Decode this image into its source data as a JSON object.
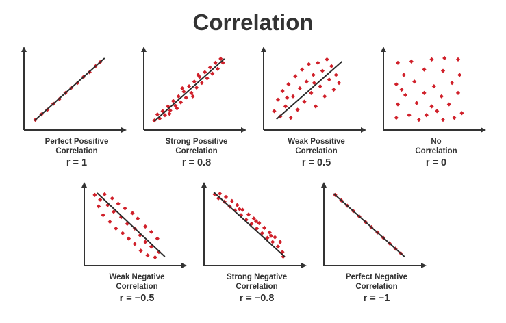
{
  "title": "Correlation",
  "colors": {
    "axis": "#333333",
    "point": "#d0202a",
    "line": "#2b2b2b",
    "text": "#333333"
  },
  "chart_data": [
    {
      "type": "scatter",
      "label_line1": "Perfect Possitive",
      "label_line2": "Correlation",
      "r_text": "r = 1",
      "r": 1.0,
      "slope": "positive",
      "points": [
        [
          0.06,
          0.05
        ],
        [
          0.14,
          0.13
        ],
        [
          0.22,
          0.2
        ],
        [
          0.3,
          0.29
        ],
        [
          0.38,
          0.36
        ],
        [
          0.46,
          0.45
        ],
        [
          0.54,
          0.53
        ],
        [
          0.62,
          0.6
        ],
        [
          0.7,
          0.69
        ],
        [
          0.78,
          0.76
        ],
        [
          0.86,
          0.85
        ],
        [
          0.92,
          0.91
        ]
      ],
      "line": [
        [
          0.05,
          0.04
        ],
        [
          0.98,
          0.97
        ]
      ]
    },
    {
      "type": "scatter",
      "label_line1": "Strong Possitive",
      "label_line2": "Correlation",
      "r_text": "r = 0.8",
      "r": 0.8,
      "slope": "positive",
      "points": [
        [
          0.05,
          0.04
        ],
        [
          0.09,
          0.13
        ],
        [
          0.12,
          0.07
        ],
        [
          0.16,
          0.18
        ],
        [
          0.19,
          0.12
        ],
        [
          0.23,
          0.25
        ],
        [
          0.26,
          0.19
        ],
        [
          0.3,
          0.33
        ],
        [
          0.33,
          0.26
        ],
        [
          0.37,
          0.4
        ],
        [
          0.4,
          0.31
        ],
        [
          0.44,
          0.47
        ],
        [
          0.47,
          0.38
        ],
        [
          0.51,
          0.55
        ],
        [
          0.54,
          0.45
        ],
        [
          0.58,
          0.62
        ],
        [
          0.61,
          0.53
        ],
        [
          0.65,
          0.69
        ],
        [
          0.68,
          0.6
        ],
        [
          0.72,
          0.76
        ],
        [
          0.75,
          0.67
        ],
        [
          0.79,
          0.83
        ],
        [
          0.82,
          0.74
        ],
        [
          0.86,
          0.9
        ],
        [
          0.89,
          0.81
        ],
        [
          0.93,
          0.96
        ],
        [
          0.96,
          0.9
        ],
        [
          0.25,
          0.14
        ],
        [
          0.42,
          0.52
        ],
        [
          0.63,
          0.72
        ],
        [
          0.35,
          0.22
        ],
        [
          0.56,
          0.4
        ]
      ],
      "line": [
        [
          0.05,
          0.03
        ],
        [
          0.98,
          0.96
        ]
      ]
    },
    {
      "type": "scatter",
      "label_line1": "Weak Possitive",
      "label_line2": "Correlation",
      "r_text": "r = 0.5",
      "r": 0.5,
      "slope": "positive",
      "points": [
        [
          0.05,
          0.18
        ],
        [
          0.1,
          0.35
        ],
        [
          0.13,
          0.1
        ],
        [
          0.16,
          0.48
        ],
        [
          0.2,
          0.25
        ],
        [
          0.24,
          0.58
        ],
        [
          0.27,
          0.08
        ],
        [
          0.3,
          0.4
        ],
        [
          0.33,
          0.7
        ],
        [
          0.36,
          0.2
        ],
        [
          0.39,
          0.52
        ],
        [
          0.42,
          0.8
        ],
        [
          0.45,
          0.32
        ],
        [
          0.48,
          0.62
        ],
        [
          0.51,
          0.88
        ],
        [
          0.54,
          0.45
        ],
        [
          0.57,
          0.72
        ],
        [
          0.6,
          0.25
        ],
        [
          0.63,
          0.9
        ],
        [
          0.66,
          0.55
        ],
        [
          0.69,
          0.78
        ],
        [
          0.72,
          0.4
        ],
        [
          0.75,
          0.95
        ],
        [
          0.78,
          0.65
        ],
        [
          0.81,
          0.85
        ],
        [
          0.84,
          0.5
        ],
        [
          0.87,
          0.72
        ],
        [
          0.91,
          0.6
        ],
        [
          0.22,
          0.38
        ],
        [
          0.58,
          0.6
        ]
      ],
      "line": [
        [
          0.08,
          0.06
        ],
        [
          0.95,
          0.92
        ]
      ]
    },
    {
      "type": "scatter",
      "label_line1": "No",
      "label_line2": "Correlation",
      "r_text": "r = 0",
      "r": 0.0,
      "slope": "none",
      "points": [
        [
          0.1,
          0.9
        ],
        [
          0.28,
          0.92
        ],
        [
          0.55,
          0.95
        ],
        [
          0.72,
          0.97
        ],
        [
          0.9,
          0.95
        ],
        [
          0.18,
          0.72
        ],
        [
          0.45,
          0.8
        ],
        [
          0.7,
          0.78
        ],
        [
          0.92,
          0.72
        ],
        [
          0.08,
          0.58
        ],
        [
          0.32,
          0.62
        ],
        [
          0.58,
          0.55
        ],
        [
          0.82,
          0.6
        ],
        [
          0.2,
          0.42
        ],
        [
          0.45,
          0.45
        ],
        [
          0.68,
          0.4
        ],
        [
          0.9,
          0.45
        ],
        [
          0.1,
          0.28
        ],
        [
          0.35,
          0.3
        ],
        [
          0.55,
          0.25
        ],
        [
          0.78,
          0.28
        ],
        [
          0.95,
          0.15
        ],
        [
          0.25,
          0.12
        ],
        [
          0.48,
          0.12
        ],
        [
          0.7,
          0.05
        ],
        [
          0.08,
          0.08
        ],
        [
          0.38,
          0.05
        ],
        [
          0.85,
          0.08
        ],
        [
          0.62,
          0.18
        ],
        [
          0.15,
          0.5
        ]
      ],
      "line": []
    },
    {
      "type": "scatter",
      "label_line1": "Weak Negative",
      "label_line2": "Correlation",
      "r_text": "r = −0.5",
      "r": -0.5,
      "slope": "negative",
      "points": [
        [
          0.05,
          0.95
        ],
        [
          0.12,
          0.88
        ],
        [
          0.18,
          0.96
        ],
        [
          0.1,
          0.78
        ],
        [
          0.22,
          0.8
        ],
        [
          0.28,
          0.9
        ],
        [
          0.16,
          0.65
        ],
        [
          0.3,
          0.7
        ],
        [
          0.36,
          0.82
        ],
        [
          0.25,
          0.55
        ],
        [
          0.4,
          0.62
        ],
        [
          0.45,
          0.75
        ],
        [
          0.33,
          0.45
        ],
        [
          0.48,
          0.52
        ],
        [
          0.55,
          0.68
        ],
        [
          0.42,
          0.38
        ],
        [
          0.58,
          0.45
        ],
        [
          0.62,
          0.6
        ],
        [
          0.5,
          0.3
        ],
        [
          0.65,
          0.35
        ],
        [
          0.72,
          0.48
        ],
        [
          0.58,
          0.22
        ],
        [
          0.72,
          0.25
        ],
        [
          0.8,
          0.4
        ],
        [
          0.66,
          0.12
        ],
        [
          0.8,
          0.18
        ],
        [
          0.88,
          0.3
        ],
        [
          0.75,
          0.05
        ],
        [
          0.9,
          0.1
        ],
        [
          0.85,
          0.02
        ]
      ],
      "line": [
        [
          0.08,
          0.98
        ],
        [
          0.98,
          0.03
        ]
      ]
    },
    {
      "type": "scatter",
      "label_line1": "Strong Negative",
      "label_line2": "Correlation",
      "r_text": "r = −0.8",
      "r": -0.8,
      "slope": "negative",
      "points": [
        [
          0.05,
          0.96
        ],
        [
          0.1,
          0.9
        ],
        [
          0.12,
          0.97
        ],
        [
          0.18,
          0.85
        ],
        [
          0.2,
          0.92
        ],
        [
          0.25,
          0.78
        ],
        [
          0.28,
          0.86
        ],
        [
          0.32,
          0.72
        ],
        [
          0.35,
          0.8
        ],
        [
          0.4,
          0.65
        ],
        [
          0.42,
          0.73
        ],
        [
          0.47,
          0.58
        ],
        [
          0.5,
          0.66
        ],
        [
          0.54,
          0.52
        ],
        [
          0.57,
          0.6
        ],
        [
          0.61,
          0.45
        ],
        [
          0.64,
          0.53
        ],
        [
          0.68,
          0.38
        ],
        [
          0.71,
          0.46
        ],
        [
          0.75,
          0.31
        ],
        [
          0.78,
          0.39
        ],
        [
          0.82,
          0.25
        ],
        [
          0.85,
          0.32
        ],
        [
          0.89,
          0.18
        ],
        [
          0.92,
          0.25
        ],
        [
          0.95,
          0.1
        ],
        [
          0.96,
          0.03
        ],
        [
          0.38,
          0.74
        ],
        [
          0.6,
          0.56
        ],
        [
          0.8,
          0.34
        ]
      ],
      "line": [
        [
          0.04,
          0.99
        ],
        [
          0.98,
          0.03
        ]
      ]
    },
    {
      "type": "scatter",
      "label_line1": "Perfect Negative",
      "label_line2": "Correlation",
      "r_text": "r = −1",
      "r": -1.0,
      "slope": "negative",
      "points": [
        [
          0.06,
          0.95
        ],
        [
          0.14,
          0.87
        ],
        [
          0.22,
          0.79
        ],
        [
          0.3,
          0.71
        ],
        [
          0.38,
          0.63
        ],
        [
          0.46,
          0.55
        ],
        [
          0.54,
          0.47
        ],
        [
          0.62,
          0.39
        ],
        [
          0.7,
          0.31
        ],
        [
          0.78,
          0.23
        ],
        [
          0.86,
          0.15
        ],
        [
          0.93,
          0.08
        ]
      ],
      "line": [
        [
          0.04,
          0.97
        ],
        [
          0.98,
          0.03
        ]
      ]
    }
  ]
}
